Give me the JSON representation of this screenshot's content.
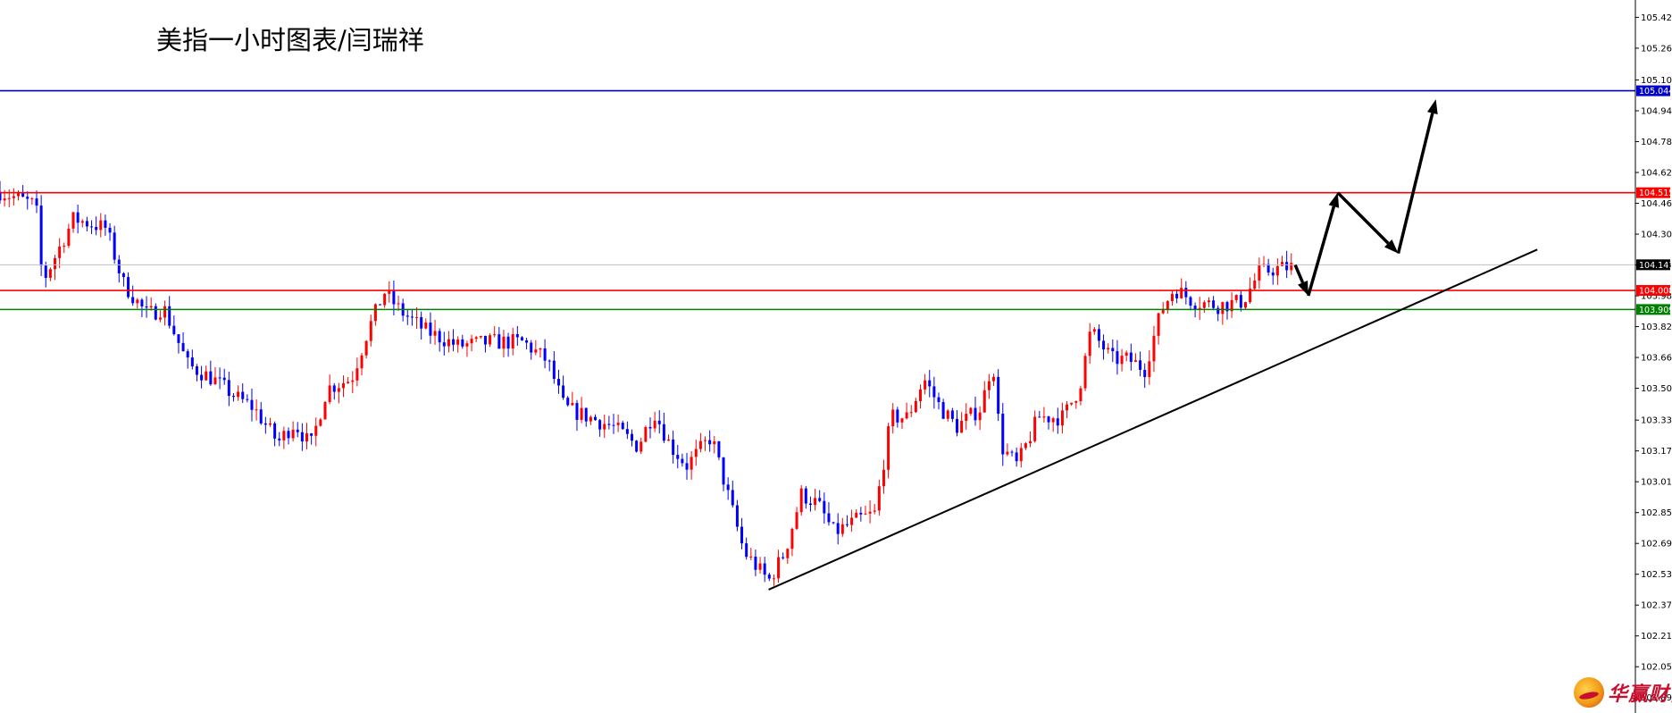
{
  "title": "美指一小时图表/闫瑞祥",
  "logo": {
    "text": "华赢财富"
  },
  "colors": {
    "bull": "#ff0000",
    "bear": "#0000ff",
    "resistance": "#ff0000",
    "support": "#008000",
    "target": "#0000cc",
    "current": "#c0c0c0",
    "annotation": "#000000"
  },
  "chart_data": {
    "type": "candlestick",
    "timeframe": "1H",
    "yaxis": {
      "position": "right",
      "range": [
        101.815,
        105.515
      ],
      "ticks": [
        105.425,
        105.265,
        105.1,
        104.94,
        104.78,
        104.62,
        104.46,
        104.3,
        104.14,
        103.98,
        103.82,
        103.66,
        103.5,
        103.335,
        103.175,
        103.015,
        102.855,
        102.695,
        102.535,
        102.375,
        102.215,
        102.055,
        101.895
      ],
      "tick_labels": [
        "105.425",
        "105.265",
        "105.100",
        "104.940",
        "104.780",
        "104.620",
        "104.460",
        "104.300",
        "104.140",
        "103.980",
        "103.820",
        "103.660",
        "103.500",
        "103.335",
        "103.175",
        "103.015",
        "102.855",
        "102.695",
        "102.535",
        "102.375",
        "102.215",
        "102.055",
        "101.895"
      ]
    },
    "levels": [
      {
        "name": "target-level",
        "value": 105.044,
        "label": "105.044",
        "color": "#0000cc"
      },
      {
        "name": "resistance-level",
        "value": 104.515,
        "label": "104.515",
        "color": "#ff0000"
      },
      {
        "name": "current-price",
        "value": 104.141,
        "label": "104.141",
        "color": "#c0c0c0",
        "tag_color": "#000000"
      },
      {
        "name": "support-level",
        "value": 104.008,
        "label": "104.008",
        "color": "#ff0000"
      },
      {
        "name": "lower-support-level",
        "value": 103.909,
        "label": "103.909",
        "color": "#008000"
      }
    ],
    "trendline": {
      "from": {
        "bar": 0.47,
        "price": 102.455
      },
      "to": {
        "bar": 0.94,
        "price": 104.22
      }
    },
    "forecast_path": [
      {
        "bar": 0.792,
        "price": 104.14
      },
      {
        "bar": 0.8,
        "price": 103.98
      },
      {
        "bar": 0.818,
        "price": 104.515
      },
      {
        "bar": 0.855,
        "price": 104.2
      },
      {
        "bar": 0.878,
        "price": 105.0
      }
    ],
    "price_path": [
      [
        0.0,
        104.52
      ],
      [
        0.022,
        104.45
      ],
      [
        0.026,
        104.05
      ],
      [
        0.045,
        104.38
      ],
      [
        0.065,
        104.33
      ],
      [
        0.075,
        104.05
      ],
      [
        0.09,
        103.88
      ],
      [
        0.1,
        103.92
      ],
      [
        0.115,
        103.62
      ],
      [
        0.13,
        103.55
      ],
      [
        0.145,
        103.45
      ],
      [
        0.155,
        103.4
      ],
      [
        0.17,
        103.22
      ],
      [
        0.18,
        103.32
      ],
      [
        0.19,
        103.2
      ],
      [
        0.2,
        103.5
      ],
      [
        0.215,
        103.55
      ],
      [
        0.225,
        103.8
      ],
      [
        0.235,
        104.0
      ],
      [
        0.245,
        103.9
      ],
      [
        0.26,
        103.8
      ],
      [
        0.28,
        103.72
      ],
      [
        0.3,
        103.74
      ],
      [
        0.32,
        103.74
      ],
      [
        0.335,
        103.64
      ],
      [
        0.345,
        103.4
      ],
      [
        0.36,
        103.35
      ],
      [
        0.375,
        103.3
      ],
      [
        0.39,
        103.2
      ],
      [
        0.4,
        103.38
      ],
      [
        0.41,
        103.2
      ],
      [
        0.42,
        103.1
      ],
      [
        0.435,
        103.25
      ],
      [
        0.445,
        102.95
      ],
      [
        0.455,
        102.65
      ],
      [
        0.47,
        102.5
      ],
      [
        0.48,
        102.65
      ],
      [
        0.49,
        102.95
      ],
      [
        0.5,
        102.9
      ],
      [
        0.51,
        102.75
      ],
      [
        0.525,
        102.82
      ],
      [
        0.535,
        102.85
      ],
      [
        0.545,
        103.35
      ],
      [
        0.555,
        103.35
      ],
      [
        0.565,
        103.55
      ],
      [
        0.575,
        103.4
      ],
      [
        0.585,
        103.3
      ],
      [
        0.6,
        103.4
      ],
      [
        0.607,
        103.65
      ],
      [
        0.612,
        103.2
      ],
      [
        0.622,
        103.1
      ],
      [
        0.635,
        103.35
      ],
      [
        0.65,
        103.35
      ],
      [
        0.66,
        103.5
      ],
      [
        0.667,
        103.8
      ],
      [
        0.68,
        103.65
      ],
      [
        0.69,
        103.65
      ],
      [
        0.7,
        103.6
      ],
      [
        0.71,
        103.9
      ],
      [
        0.718,
        104.02
      ],
      [
        0.73,
        103.95
      ],
      [
        0.745,
        103.93
      ],
      [
        0.76,
        103.95
      ],
      [
        0.77,
        104.1
      ],
      [
        0.78,
        104.12
      ],
      [
        0.79,
        104.13
      ]
    ]
  }
}
